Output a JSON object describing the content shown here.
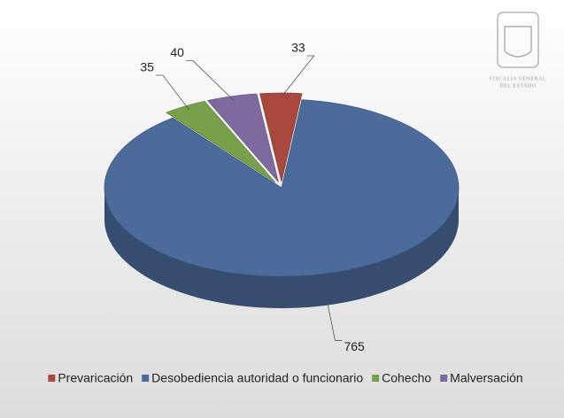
{
  "logo": {
    "lines": [
      "FISCALIA GENERAL",
      "DEL ESTADO"
    ]
  },
  "chart_data": {
    "type": "pie",
    "categories": [
      "Prevaricación",
      "Desobediencia autoridad o funcionario",
      "Cohecho",
      "Malversación"
    ],
    "values": [
      33,
      765,
      35,
      40
    ],
    "colors": [
      "#a8483e",
      "#4b6b9b",
      "#78a04a",
      "#7e6a9e"
    ],
    "legend": "bottom"
  }
}
